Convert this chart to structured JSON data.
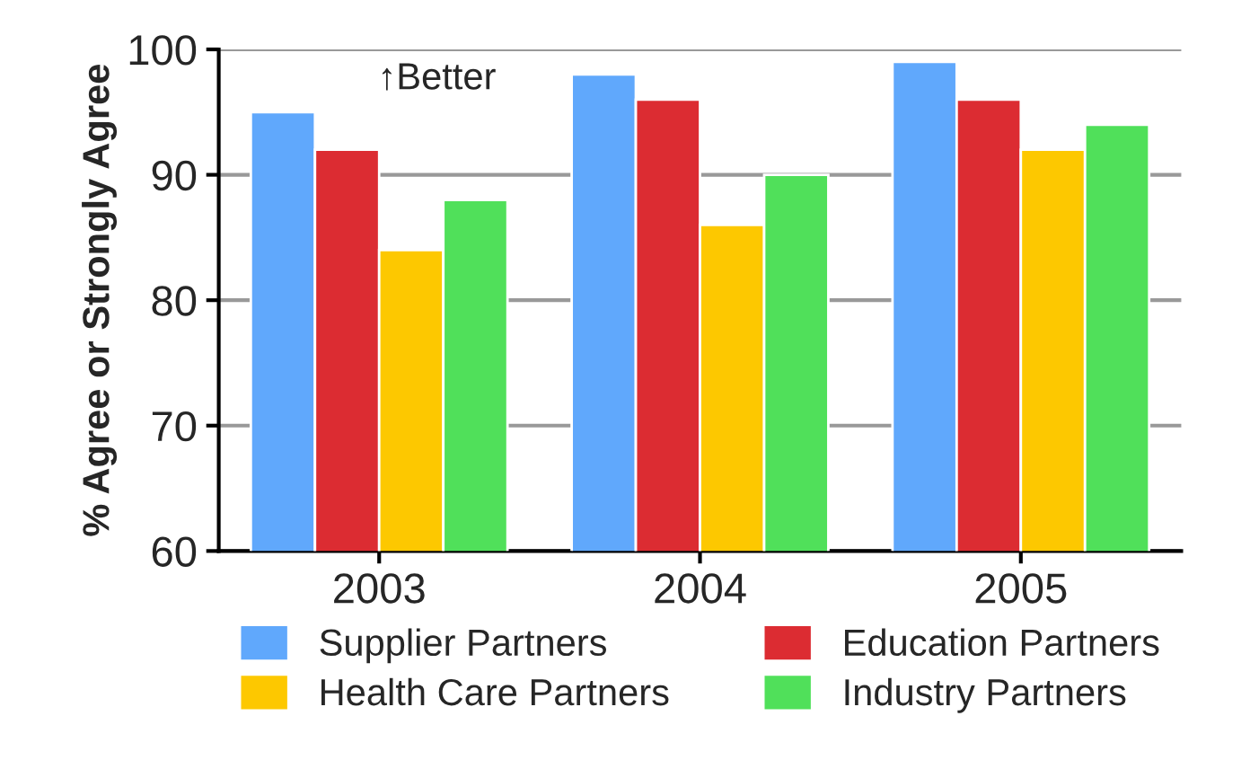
{
  "chart_data": {
    "type": "bar",
    "ylabel": "% Agree or Strongly Agree",
    "categories": [
      "2003",
      "2004",
      "2005"
    ],
    "series": [
      {
        "name": "Supplier Partners",
        "color": "#60a8fc",
        "values": [
          95,
          98,
          99
        ]
      },
      {
        "name": "Education Partners",
        "color": "#dc2c32",
        "values": [
          92,
          96,
          96
        ]
      },
      {
        "name": "Health Care Partners",
        "color": "#fdc800",
        "values": [
          84,
          86,
          92
        ]
      },
      {
        "name": "Industry Partners",
        "color": "#50e05a",
        "values": [
          88,
          90,
          94
        ]
      }
    ],
    "ylim": [
      60,
      100
    ],
    "yticks": [
      60,
      70,
      80,
      90,
      100
    ],
    "grid": "y",
    "legend": "bottom",
    "annotations": [
      "↑Better"
    ]
  }
}
